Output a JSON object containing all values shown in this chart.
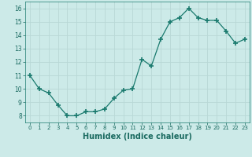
{
  "x": [
    0,
    1,
    2,
    3,
    4,
    5,
    6,
    7,
    8,
    9,
    10,
    11,
    12,
    13,
    14,
    15,
    16,
    17,
    18,
    19,
    20,
    21,
    22,
    23
  ],
  "y": [
    11.0,
    10.0,
    9.7,
    8.8,
    8.0,
    8.0,
    8.3,
    8.3,
    8.5,
    9.3,
    9.9,
    10.0,
    12.2,
    11.7,
    13.7,
    15.0,
    15.3,
    16.0,
    15.3,
    15.1,
    15.1,
    14.3,
    13.4,
    13.7
  ],
  "xlabel": "Humidex (Indice chaleur)",
  "line_color": "#1a7a6e",
  "bg_color": "#cceae8",
  "grid_color": "#b8d8d6",
  "yticks": [
    8,
    9,
    10,
    11,
    12,
    13,
    14,
    15,
    16
  ],
  "xtick_labels": [
    "0",
    "1",
    "2",
    "3",
    "4",
    "5",
    "6",
    "7",
    "8",
    "9",
    "10",
    "11",
    "12",
    "13",
    "14",
    "15",
    "16",
    "17",
    "18",
    "19",
    "20",
    "21",
    "22",
    "23"
  ],
  "ylim": [
    7.5,
    16.5
  ],
  "xlim": [
    -0.5,
    23.5
  ]
}
